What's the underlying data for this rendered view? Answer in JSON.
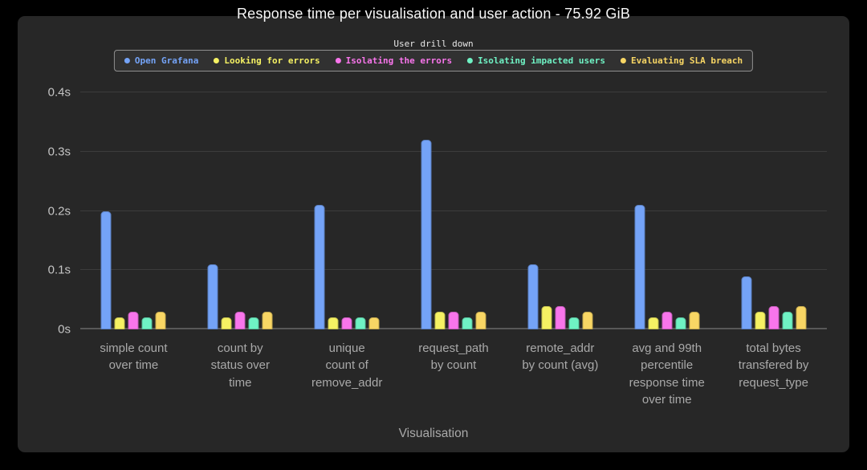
{
  "title": "Response time per visualisation and user action - 75.92 GiB",
  "colors": {
    "background": "#000000",
    "panel": "#272727",
    "gridline": "#3c3c3c",
    "axis_line": "#585858",
    "tick_text": "#c4c4c4",
    "label_text": "#a9a9a9",
    "title_text": "#f7f7f7",
    "legend_border": "#8f8f8f",
    "legend_background": "#313131"
  },
  "legend": {
    "title": "User drill down",
    "position": "top-center"
  },
  "chart_data": {
    "type": "bar",
    "title": "Response time per visualisation and user action - 75.92 GiB",
    "legend_title": "User drill down",
    "legend_position": "top-center",
    "grid": true,
    "xlabel": "Visualisation",
    "ylabel": "",
    "ylim": [
      0,
      0.44
    ],
    "yticks": [
      {
        "label": "0s",
        "value": 0
      },
      {
        "label": "0.1s",
        "value": 0.1
      },
      {
        "label": "0.2s",
        "value": 0.2
      },
      {
        "label": "0.3s",
        "value": 0.3
      },
      {
        "label": "0.4s",
        "value": 0.4
      }
    ],
    "categories": [
      "simple count over time",
      "count by status over time",
      "unique count of remove_addr",
      "request_path by count",
      "remote_addr by count (avg)",
      "avg and 99th percentile response time over time",
      "total bytes transfered by request_type"
    ],
    "category_lines": [
      [
        "simple count",
        "over time"
      ],
      [
        "count by",
        "status over",
        "time"
      ],
      [
        "unique",
        "count of",
        "remove_addr"
      ],
      [
        "request_path",
        "by count"
      ],
      [
        "remote_addr",
        "by count (avg)"
      ],
      [
        "avg and 99th",
        "percentile",
        "response time",
        "over time"
      ],
      [
        "total bytes",
        "transfered by",
        "request_type"
      ]
    ],
    "series": [
      {
        "name": "Open Grafana",
        "color": "#74a3f7",
        "values": [
          0.2,
          0.11,
          0.21,
          0.32,
          0.11,
          0.21,
          0.09
        ]
      },
      {
        "name": "Looking for errors",
        "color": "#f5f163",
        "values": [
          0.02,
          0.02,
          0.02,
          0.03,
          0.04,
          0.02,
          0.03
        ]
      },
      {
        "name": "Isolating the errors",
        "color": "#f875eb",
        "values": [
          0.03,
          0.03,
          0.02,
          0.03,
          0.04,
          0.03,
          0.04
        ]
      },
      {
        "name": "Isolating impacted users",
        "color": "#6ff2c4",
        "values": [
          0.02,
          0.02,
          0.02,
          0.02,
          0.02,
          0.02,
          0.03
        ]
      },
      {
        "name": "Evaluating SLA breach",
        "color": "#f8d664",
        "values": [
          0.03,
          0.03,
          0.02,
          0.03,
          0.03,
          0.03,
          0.04
        ]
      }
    ]
  }
}
